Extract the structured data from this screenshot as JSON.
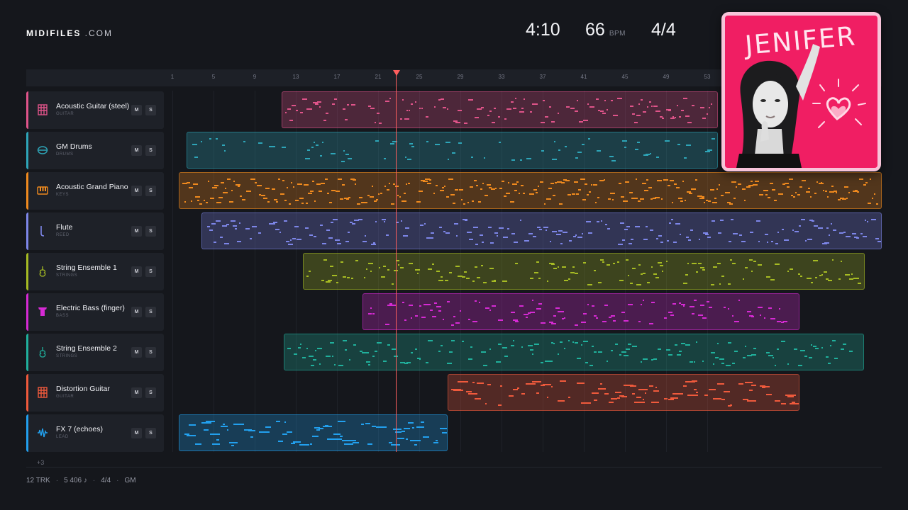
{
  "brand": {
    "name_bold": "MIDIFILES",
    "name_light": " .COM"
  },
  "header": {
    "duration": "4:10",
    "tempo": "66",
    "tempo_unit": "BPM",
    "time_signature": "4/4"
  },
  "ruler": {
    "bars": [
      "1",
      "5",
      "9",
      "13",
      "17",
      "21",
      "25",
      "29",
      "33",
      "37",
      "41",
      "45",
      "49",
      "53"
    ]
  },
  "playhead": {
    "bar": 22
  },
  "tracks": [
    {
      "name": "Acoustic Guitar (steel)",
      "category": "GUITAR",
      "color": "#e0548a",
      "icon": "guitar-grid-icon",
      "mute": "M",
      "solo": "S"
    },
    {
      "name": "GM Drums",
      "category": "DRUMS",
      "color": "#2ea5b8",
      "icon": "drum-icon",
      "mute": "M",
      "solo": "S"
    },
    {
      "name": "Acoustic Grand Piano",
      "category": "KEYS",
      "color": "#f08a1e",
      "icon": "piano-icon",
      "mute": "M",
      "solo": "S"
    },
    {
      "name": "Flute",
      "category": "REED",
      "color": "#7d86e8",
      "icon": "flute-icon",
      "mute": "M",
      "solo": "S"
    },
    {
      "name": "String Ensemble 1",
      "category": "STRINGS",
      "color": "#a6bb23",
      "icon": "violin-icon",
      "mute": "M",
      "solo": "S"
    },
    {
      "name": "Electric Bass (finger)",
      "category": "BASS",
      "color": "#d62ad4",
      "icon": "bass-icon",
      "mute": "M",
      "solo": "S"
    },
    {
      "name": "String Ensemble 2",
      "category": "STRINGS",
      "color": "#20b09c",
      "icon": "violin-icon",
      "mute": "M",
      "solo": "S"
    },
    {
      "name": "Distortion Guitar",
      "category": "GUITAR",
      "color": "#f05a3c",
      "icon": "guitar-grid-icon",
      "mute": "M",
      "solo": "S"
    },
    {
      "name": "FX 7 (echoes)",
      "category": "LEAD",
      "color": "#22a0ee",
      "icon": "waveform-icon",
      "mute": "M",
      "solo": "S"
    }
  ],
  "more_tracks": "+3",
  "footer": {
    "tracks": "12 TRK",
    "notes": "5 406 ♪",
    "meter": "4/4",
    "standard": "GM"
  },
  "album": {
    "title": "JENIFER",
    "background": "#f01e63",
    "border": "#f7c4d9"
  }
}
